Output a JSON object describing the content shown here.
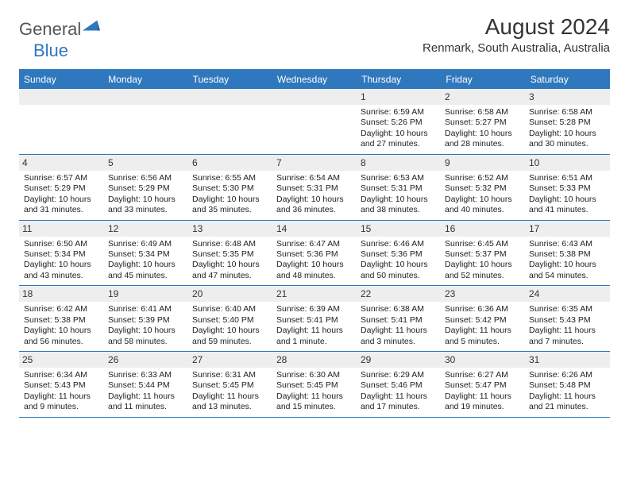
{
  "logo": {
    "text1": "General",
    "text2": "Blue",
    "shape_color": "#2f78bd"
  },
  "header": {
    "month_title": "August 2024",
    "location": "Renmark, South Australia, Australia"
  },
  "colors": {
    "brand": "#2f78bd",
    "header_text": "#ffffff",
    "daynum_bg": "#eeeeee",
    "border": "#2f78bd",
    "body_text": "#333333",
    "background": "#ffffff"
  },
  "dow": [
    "Sunday",
    "Monday",
    "Tuesday",
    "Wednesday",
    "Thursday",
    "Friday",
    "Saturday"
  ],
  "weeks": [
    [
      {
        "blank": true
      },
      {
        "blank": true
      },
      {
        "blank": true
      },
      {
        "blank": true
      },
      {
        "day": "1",
        "sunrise": "Sunrise: 6:59 AM",
        "sunset": "Sunset: 5:26 PM",
        "daylight1": "Daylight: 10 hours",
        "daylight2": "and 27 minutes."
      },
      {
        "day": "2",
        "sunrise": "Sunrise: 6:58 AM",
        "sunset": "Sunset: 5:27 PM",
        "daylight1": "Daylight: 10 hours",
        "daylight2": "and 28 minutes."
      },
      {
        "day": "3",
        "sunrise": "Sunrise: 6:58 AM",
        "sunset": "Sunset: 5:28 PM",
        "daylight1": "Daylight: 10 hours",
        "daylight2": "and 30 minutes."
      }
    ],
    [
      {
        "day": "4",
        "sunrise": "Sunrise: 6:57 AM",
        "sunset": "Sunset: 5:29 PM",
        "daylight1": "Daylight: 10 hours",
        "daylight2": "and 31 minutes."
      },
      {
        "day": "5",
        "sunrise": "Sunrise: 6:56 AM",
        "sunset": "Sunset: 5:29 PM",
        "daylight1": "Daylight: 10 hours",
        "daylight2": "and 33 minutes."
      },
      {
        "day": "6",
        "sunrise": "Sunrise: 6:55 AM",
        "sunset": "Sunset: 5:30 PM",
        "daylight1": "Daylight: 10 hours",
        "daylight2": "and 35 minutes."
      },
      {
        "day": "7",
        "sunrise": "Sunrise: 6:54 AM",
        "sunset": "Sunset: 5:31 PM",
        "daylight1": "Daylight: 10 hours",
        "daylight2": "and 36 minutes."
      },
      {
        "day": "8",
        "sunrise": "Sunrise: 6:53 AM",
        "sunset": "Sunset: 5:31 PM",
        "daylight1": "Daylight: 10 hours",
        "daylight2": "and 38 minutes."
      },
      {
        "day": "9",
        "sunrise": "Sunrise: 6:52 AM",
        "sunset": "Sunset: 5:32 PM",
        "daylight1": "Daylight: 10 hours",
        "daylight2": "and 40 minutes."
      },
      {
        "day": "10",
        "sunrise": "Sunrise: 6:51 AM",
        "sunset": "Sunset: 5:33 PM",
        "daylight1": "Daylight: 10 hours",
        "daylight2": "and 41 minutes."
      }
    ],
    [
      {
        "day": "11",
        "sunrise": "Sunrise: 6:50 AM",
        "sunset": "Sunset: 5:34 PM",
        "daylight1": "Daylight: 10 hours",
        "daylight2": "and 43 minutes."
      },
      {
        "day": "12",
        "sunrise": "Sunrise: 6:49 AM",
        "sunset": "Sunset: 5:34 PM",
        "daylight1": "Daylight: 10 hours",
        "daylight2": "and 45 minutes."
      },
      {
        "day": "13",
        "sunrise": "Sunrise: 6:48 AM",
        "sunset": "Sunset: 5:35 PM",
        "daylight1": "Daylight: 10 hours",
        "daylight2": "and 47 minutes."
      },
      {
        "day": "14",
        "sunrise": "Sunrise: 6:47 AM",
        "sunset": "Sunset: 5:36 PM",
        "daylight1": "Daylight: 10 hours",
        "daylight2": "and 48 minutes."
      },
      {
        "day": "15",
        "sunrise": "Sunrise: 6:46 AM",
        "sunset": "Sunset: 5:36 PM",
        "daylight1": "Daylight: 10 hours",
        "daylight2": "and 50 minutes."
      },
      {
        "day": "16",
        "sunrise": "Sunrise: 6:45 AM",
        "sunset": "Sunset: 5:37 PM",
        "daylight1": "Daylight: 10 hours",
        "daylight2": "and 52 minutes."
      },
      {
        "day": "17",
        "sunrise": "Sunrise: 6:43 AM",
        "sunset": "Sunset: 5:38 PM",
        "daylight1": "Daylight: 10 hours",
        "daylight2": "and 54 minutes."
      }
    ],
    [
      {
        "day": "18",
        "sunrise": "Sunrise: 6:42 AM",
        "sunset": "Sunset: 5:38 PM",
        "daylight1": "Daylight: 10 hours",
        "daylight2": "and 56 minutes."
      },
      {
        "day": "19",
        "sunrise": "Sunrise: 6:41 AM",
        "sunset": "Sunset: 5:39 PM",
        "daylight1": "Daylight: 10 hours",
        "daylight2": "and 58 minutes."
      },
      {
        "day": "20",
        "sunrise": "Sunrise: 6:40 AM",
        "sunset": "Sunset: 5:40 PM",
        "daylight1": "Daylight: 10 hours",
        "daylight2": "and 59 minutes."
      },
      {
        "day": "21",
        "sunrise": "Sunrise: 6:39 AM",
        "sunset": "Sunset: 5:41 PM",
        "daylight1": "Daylight: 11 hours",
        "daylight2": "and 1 minute."
      },
      {
        "day": "22",
        "sunrise": "Sunrise: 6:38 AM",
        "sunset": "Sunset: 5:41 PM",
        "daylight1": "Daylight: 11 hours",
        "daylight2": "and 3 minutes."
      },
      {
        "day": "23",
        "sunrise": "Sunrise: 6:36 AM",
        "sunset": "Sunset: 5:42 PM",
        "daylight1": "Daylight: 11 hours",
        "daylight2": "and 5 minutes."
      },
      {
        "day": "24",
        "sunrise": "Sunrise: 6:35 AM",
        "sunset": "Sunset: 5:43 PM",
        "daylight1": "Daylight: 11 hours",
        "daylight2": "and 7 minutes."
      }
    ],
    [
      {
        "day": "25",
        "sunrise": "Sunrise: 6:34 AM",
        "sunset": "Sunset: 5:43 PM",
        "daylight1": "Daylight: 11 hours",
        "daylight2": "and 9 minutes."
      },
      {
        "day": "26",
        "sunrise": "Sunrise: 6:33 AM",
        "sunset": "Sunset: 5:44 PM",
        "daylight1": "Daylight: 11 hours",
        "daylight2": "and 11 minutes."
      },
      {
        "day": "27",
        "sunrise": "Sunrise: 6:31 AM",
        "sunset": "Sunset: 5:45 PM",
        "daylight1": "Daylight: 11 hours",
        "daylight2": "and 13 minutes."
      },
      {
        "day": "28",
        "sunrise": "Sunrise: 6:30 AM",
        "sunset": "Sunset: 5:45 PM",
        "daylight1": "Daylight: 11 hours",
        "daylight2": "and 15 minutes."
      },
      {
        "day": "29",
        "sunrise": "Sunrise: 6:29 AM",
        "sunset": "Sunset: 5:46 PM",
        "daylight1": "Daylight: 11 hours",
        "daylight2": "and 17 minutes."
      },
      {
        "day": "30",
        "sunrise": "Sunrise: 6:27 AM",
        "sunset": "Sunset: 5:47 PM",
        "daylight1": "Daylight: 11 hours",
        "daylight2": "and 19 minutes."
      },
      {
        "day": "31",
        "sunrise": "Sunrise: 6:26 AM",
        "sunset": "Sunset: 5:48 PM",
        "daylight1": "Daylight: 11 hours",
        "daylight2": "and 21 minutes."
      }
    ]
  ]
}
